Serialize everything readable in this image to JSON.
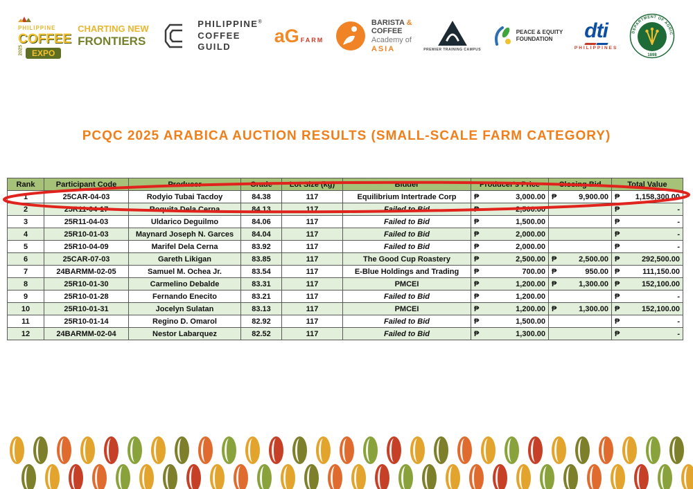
{
  "header_logos": {
    "expo": {
      "philippine": "PHILIPPINE",
      "coffee": "COFFEE",
      "expo": "EXPO",
      "year": "2025",
      "tagline_top": "CHARTING NEW",
      "tagline_bottom": "FRONTIERS"
    },
    "guild": {
      "line1": "PHILIPPINE",
      "reg": "®",
      "line2": "COFFEE",
      "line3": "GUILD"
    },
    "agfarm": {
      "main": "aG",
      "sub": "FARM"
    },
    "barista": {
      "line1": "BARISTA ",
      "amp": "&",
      "line2": "COFFEE",
      "line3": "Academy of",
      "line4": "ASIA"
    },
    "premier": {
      "caption": "PREMIER TRAINING CAMPUS"
    },
    "pef": {
      "line1": "PEACE & EQUITY",
      "line2": "FOUNDATION"
    },
    "dti": {
      "main": "dti",
      "sub": "PHILIPPINES"
    },
    "da": {
      "ring_text": "DEPARTMENT OF AGRICULTURE",
      "year": "1898"
    }
  },
  "title": "PCQC 2025 ARABICA AUCTION RESULTS (SMALL-SCALE FARM CATEGORY)",
  "table": {
    "headers": [
      "Rank",
      "Participant Code",
      "Producer",
      "Grade",
      "Lot Size (kg)",
      "Bidder",
      "Producer's Price",
      "Closing Bid",
      "Total Value"
    ],
    "currency": "₱",
    "rows": [
      {
        "rank": "1",
        "code": "25CAR-04-03",
        "producer": "Rodyio Tubai Tacdoy",
        "grade": "84.38",
        "lot": "117",
        "bidder": "Equilibrium Intertrade Corp",
        "failed": false,
        "price": "3,000.00",
        "closing": "9,900.00",
        "total": "1,158,300.00"
      },
      {
        "rank": "2",
        "code": "25R11-04-17",
        "producer": "Roquita Dela Cerna",
        "grade": "84.13",
        "lot": "117",
        "bidder": "Failed to Bid",
        "failed": true,
        "price": "2,500.00",
        "closing": "",
        "total": "-"
      },
      {
        "rank": "3",
        "code": "25R11-04-03",
        "producer": "Uldarico Deguilmo",
        "grade": "84.06",
        "lot": "117",
        "bidder": "Failed to Bid",
        "failed": true,
        "price": "1,500.00",
        "closing": "",
        "total": "-"
      },
      {
        "rank": "4",
        "code": "25R10-01-03",
        "producer": "Maynard Joseph N. Garces",
        "grade": "84.04",
        "lot": "117",
        "bidder": "Failed to Bid",
        "failed": true,
        "price": "2,000.00",
        "closing": "",
        "total": "-"
      },
      {
        "rank": "5",
        "code": "25R10-04-09",
        "producer": "Marifel Dela Cerna",
        "grade": "83.92",
        "lot": "117",
        "bidder": "Failed to Bid",
        "failed": true,
        "price": "2,000.00",
        "closing": "",
        "total": "-"
      },
      {
        "rank": "6",
        "code": "25CAR-07-03",
        "producer": "Gareth Likigan",
        "grade": "83.85",
        "lot": "117",
        "bidder": "The Good Cup Roastery",
        "failed": false,
        "price": "2,500.00",
        "closing": "2,500.00",
        "total": "292,500.00"
      },
      {
        "rank": "7",
        "code": "24BARMM-02-05",
        "producer": "Samuel M. Ochea Jr.",
        "grade": "83.54",
        "lot": "117",
        "bidder": "E-Blue Holdings and Trading",
        "failed": false,
        "price": "700.00",
        "closing": "950.00",
        "total": "111,150.00"
      },
      {
        "rank": "8",
        "code": "25R10-01-30",
        "producer": "Carmelino Debalde",
        "grade": "83.31",
        "lot": "117",
        "bidder": "PMCEI",
        "failed": false,
        "price": "1,200.00",
        "closing": "1,300.00",
        "total": "152,100.00"
      },
      {
        "rank": "9",
        "code": "25R10-01-28",
        "producer": "Fernando Enecito",
        "grade": "83.21",
        "lot": "117",
        "bidder": "Failed to Bid",
        "failed": true,
        "price": "1,200.00",
        "closing": "",
        "total": "-"
      },
      {
        "rank": "10",
        "code": "25R10-01-31",
        "producer": "Jocelyn Sulatan",
        "grade": "83.13",
        "lot": "117",
        "bidder": "PMCEI",
        "failed": false,
        "price": "1,200.00",
        "closing": "1,300.00",
        "total": "152,100.00"
      },
      {
        "rank": "11",
        "code": "25R10-01-14",
        "producer": "Regino D. Omarol",
        "grade": "82.92",
        "lot": "117",
        "bidder": "Failed to Bid",
        "failed": true,
        "price": "1,500.00",
        "closing": "",
        "total": "-"
      },
      {
        "rank": "12",
        "code": "24BARMM-02-04",
        "producer": "Nestor Labarquez",
        "grade": "82.52",
        "lot": "117",
        "bidder": "Failed to Bid",
        "failed": true,
        "price": "1,300.00",
        "closing": "",
        "total": "-"
      }
    ]
  },
  "annotation": {
    "shape": "ellipse",
    "color": "#E0231C",
    "marks_row_rank": "1"
  },
  "colors": {
    "title_orange": "#EF7F1A",
    "header_green": "#A6C178",
    "band_green": "#E2EFDA",
    "annotation_red": "#E0231C"
  },
  "footer_beans": {
    "row1": [
      "#E2A42C",
      "#7D7F2B",
      "#DF6C2E",
      "#E2A42C",
      "#C54026",
      "#8AA23C",
      "#E2A42C",
      "#7D7F2B",
      "#DF6C2E",
      "#8AA23C",
      "#E2A42C",
      "#C54026",
      "#7D7F2B",
      "#E2A42C",
      "#DF6C2E",
      "#8AA23C",
      "#C54026",
      "#E2A42C",
      "#7D7F2B",
      "#DF6C2E",
      "#E2A42C",
      "#8AA23C",
      "#C54026",
      "#E2A42C",
      "#7D7F2B",
      "#DF6C2E",
      "#E2A42C",
      "#8AA23C",
      "#7D7F2B"
    ],
    "row2": [
      "#7D7F2B",
      "#E2A42C",
      "#C54026",
      "#DF6C2E",
      "#8AA23C",
      "#E2A42C",
      "#7D7F2B",
      "#C54026",
      "#E2A42C",
      "#DF6C2E",
      "#8AA23C",
      "#E2A42C",
      "#7D7F2B",
      "#DF6C2E",
      "#E2A42C",
      "#C54026",
      "#8AA23C",
      "#7D7F2B",
      "#E2A42C",
      "#DF6C2E",
      "#C54026",
      "#E2A42C",
      "#8AA23C",
      "#7D7F2B",
      "#DF6C2E",
      "#E2A42C",
      "#C54026",
      "#8AA23C",
      "#E2A42C"
    ]
  }
}
